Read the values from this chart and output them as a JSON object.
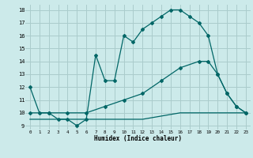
{
  "xlabel": "Humidex (Indice chaleur)",
  "bg_color": "#cceaea",
  "grid_color": "#aacccc",
  "line_color": "#006666",
  "xlim": [
    -0.5,
    23.5
  ],
  "ylim": [
    8.7,
    18.4
  ],
  "yticks": [
    9,
    10,
    11,
    12,
    13,
    14,
    15,
    16,
    17,
    18
  ],
  "xticks": [
    0,
    1,
    2,
    3,
    4,
    5,
    6,
    7,
    8,
    9,
    10,
    11,
    12,
    13,
    14,
    15,
    16,
    17,
    18,
    19,
    20,
    21,
    22,
    23
  ],
  "line1_x": [
    0,
    1,
    2,
    3,
    4,
    5,
    6,
    7,
    8,
    9,
    10,
    11,
    12,
    13,
    14,
    15,
    16,
    17,
    18,
    19,
    20,
    21,
    22,
    23
  ],
  "line1_y": [
    12,
    10,
    10,
    9.5,
    9.5,
    9,
    9.5,
    14.5,
    12.5,
    12.5,
    16,
    15.5,
    16.5,
    17,
    17.5,
    18,
    18,
    17.5,
    17,
    16,
    13,
    11.5,
    10.5,
    10
  ],
  "line2_x": [
    0,
    2,
    4,
    6,
    8,
    10,
    12,
    14,
    16,
    18,
    19,
    20,
    21,
    22,
    23
  ],
  "line2_y": [
    10,
    10,
    10,
    10,
    10.5,
    11,
    11.5,
    12.5,
    13.5,
    14,
    14,
    13,
    11.5,
    10.5,
    10
  ],
  "line3_x": [
    0,
    4,
    8,
    12,
    16,
    20,
    23
  ],
  "line3_y": [
    9.5,
    9.5,
    9.5,
    9.5,
    10,
    10,
    10
  ]
}
